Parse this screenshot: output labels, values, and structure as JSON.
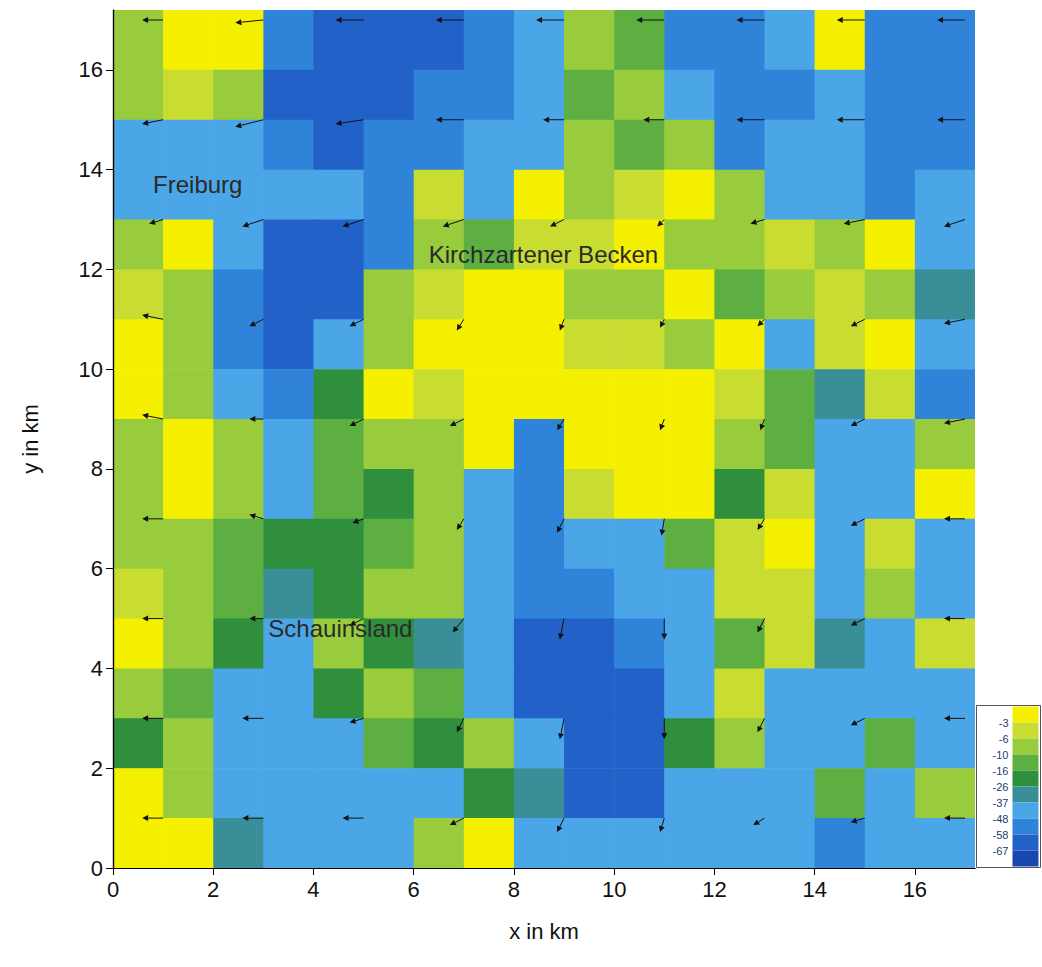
{
  "chart_data": {
    "type": "heatmap",
    "xlabel": "x in km",
    "ylabel": "y in km",
    "xlim": [
      0,
      17.2
    ],
    "ylim": [
      0,
      17.2
    ],
    "xticks": [
      0,
      2,
      4,
      6,
      8,
      10,
      12,
      14,
      16
    ],
    "yticks": [
      0,
      2,
      4,
      6,
      8,
      10,
      12,
      14,
      16
    ],
    "cells": {
      "x": [
        0.5,
        1.5,
        2.5,
        3.5,
        4.5,
        5.5,
        6.5,
        7.5,
        8.5,
        9.5,
        10.5,
        11.5,
        12.5,
        13.5,
        14.5,
        15.5,
        16.5
      ],
      "y": [
        16.5,
        15.5,
        14.5,
        13.5,
        12.5,
        11.5,
        10.5,
        9.5,
        8.5,
        7.5,
        6.5,
        5.5,
        4.5,
        3.5,
        2.5,
        1.5,
        0.5
      ],
      "values": [
        [
          -8,
          -2,
          -2,
          -52,
          -62,
          -62,
          -62,
          -52,
          -42,
          -8,
          -13,
          -52,
          -52,
          -42,
          -2,
          -52,
          -52
        ],
        [
          -8,
          -5,
          -8,
          -62,
          -62,
          -62,
          -52,
          -52,
          -42,
          -13,
          -8,
          -42,
          -52,
          -52,
          -42,
          -52,
          -52
        ],
        [
          -42,
          -42,
          -42,
          -52,
          -62,
          -52,
          -52,
          -42,
          -42,
          -8,
          -13,
          -8,
          -52,
          -42,
          -42,
          -52,
          -52
        ],
        [
          -42,
          -42,
          -42,
          -42,
          -42,
          -52,
          -5,
          -42,
          -2,
          -8,
          -5,
          -2,
          -8,
          -42,
          -42,
          -52,
          -42
        ],
        [
          -8,
          -2,
          -42,
          -62,
          -62,
          -52,
          -8,
          -13,
          -5,
          -5,
          -2,
          -8,
          -8,
          -5,
          -8,
          -2,
          -42
        ],
        [
          -5,
          -8,
          -52,
          -62,
          -62,
          -8,
          -5,
          -2,
          -2,
          -8,
          -8,
          -2,
          -13,
          -8,
          -5,
          -8,
          -30
        ],
        [
          -2,
          -8,
          -52,
          -62,
          -42,
          -8,
          -2,
          -2,
          -2,
          -5,
          -5,
          -8,
          -2,
          -42,
          -5,
          -2,
          -42
        ],
        [
          -2,
          -8,
          -42,
          -52,
          -20,
          -2,
          -5,
          -2,
          -2,
          -2,
          -2,
          -2,
          -5,
          -13,
          -30,
          -5,
          -52
        ],
        [
          -8,
          -2,
          -8,
          -42,
          -13,
          -8,
          -8,
          -2,
          -52,
          -2,
          -2,
          -2,
          -8,
          -13,
          -42,
          -42,
          -8
        ],
        [
          -8,
          -2,
          -8,
          -42,
          -13,
          -20,
          -8,
          -42,
          -52,
          -5,
          -2,
          -2,
          -20,
          -5,
          -42,
          -42,
          -2
        ],
        [
          -8,
          -8,
          -13,
          -20,
          -20,
          -13,
          -8,
          -42,
          -52,
          -42,
          -42,
          -13,
          -5,
          -2,
          -42,
          -5,
          -42
        ],
        [
          -5,
          -8,
          -13,
          -30,
          -20,
          -8,
          -8,
          -42,
          -52,
          -52,
          -42,
          -42,
          -5,
          -5,
          -42,
          -8,
          -42
        ],
        [
          -2,
          -8,
          -20,
          -42,
          -8,
          -20,
          -30,
          -42,
          -62,
          -62,
          -52,
          -42,
          -13,
          -5,
          -30,
          -42,
          -5
        ],
        [
          -8,
          -13,
          -42,
          -42,
          -20,
          -8,
          -13,
          -42,
          -62,
          -62,
          -62,
          -42,
          -5,
          -42,
          -42,
          -42,
          -42
        ],
        [
          -20,
          -8,
          -42,
          -42,
          -42,
          -13,
          -20,
          -8,
          -42,
          -62,
          -62,
          -20,
          -8,
          -42,
          -42,
          -13,
          -42
        ],
        [
          -2,
          -8,
          -42,
          -42,
          -42,
          -42,
          -42,
          -20,
          -30,
          -62,
          -62,
          -42,
          -42,
          -42,
          -13,
          -42,
          -8
        ],
        [
          -2,
          -2,
          -30,
          -42,
          -42,
          -42,
          -8,
          -2,
          -42,
          -42,
          -42,
          -42,
          -42,
          -42,
          -52,
          -42,
          -42
        ]
      ]
    },
    "vectors": {
      "x": [
        1,
        3,
        5,
        7,
        9,
        11,
        13,
        15,
        17
      ],
      "y": [
        17,
        15,
        13,
        11,
        9,
        7,
        5,
        3,
        1
      ],
      "u": [
        [
          -1.5,
          -2,
          -2,
          -2,
          -2,
          -2,
          -2,
          -2,
          -2
        ],
        [
          -1.5,
          -2,
          -2,
          -2,
          -1.5,
          -1.5,
          -2,
          -2,
          -2
        ],
        [
          -1,
          -1.5,
          -1.5,
          -1.5,
          -1,
          -0.5,
          -1,
          -1.5,
          -1.5
        ],
        [
          -1.5,
          -1,
          -1,
          -0.5,
          -0.3,
          -0.3,
          -0.5,
          -1,
          -1.5
        ],
        [
          -1.5,
          -1,
          -1,
          -1,
          -0.5,
          -0.3,
          -0.3,
          -1,
          -1.5
        ],
        [
          -1.5,
          -1,
          -0.8,
          -0.5,
          -0.5,
          -0.2,
          -0.5,
          -1,
          -1.5
        ],
        [
          -1.5,
          -1,
          -1,
          -0.8,
          -0.3,
          0,
          -0.5,
          -1,
          -1.5
        ],
        [
          -1.5,
          -1.5,
          -1,
          -0.5,
          -0.3,
          0,
          -0.5,
          -1,
          -1.5
        ],
        [
          -1.5,
          -1.5,
          -1.5,
          -1,
          -0.5,
          -0.3,
          -0.8,
          -1,
          -1.5
        ]
      ],
      "v": [
        [
          0,
          -0.2,
          0,
          0,
          0,
          0,
          0,
          0,
          0
        ],
        [
          -0.3,
          -0.5,
          -0.3,
          0,
          0,
          0,
          0,
          0,
          0
        ],
        [
          -0.3,
          -0.5,
          -0.5,
          -0.5,
          -0.5,
          -0.5,
          -0.3,
          -0.3,
          -0.5
        ],
        [
          0.3,
          -0.5,
          -0.5,
          -0.8,
          -0.8,
          -0.6,
          -0.5,
          -0.5,
          -0.3
        ],
        [
          0.3,
          0,
          -0.5,
          -0.5,
          -0.8,
          -0.8,
          -0.8,
          -0.5,
          -0.3
        ],
        [
          0,
          0.3,
          -0.3,
          -0.8,
          -1,
          -1.2,
          -0.8,
          -0.5,
          0
        ],
        [
          0,
          0,
          -0.5,
          -1,
          -1.5,
          -1.5,
          -1,
          -0.5,
          0
        ],
        [
          0,
          0,
          -0.3,
          -1,
          -1.5,
          -1.5,
          -1,
          -0.5,
          0
        ],
        [
          0,
          0,
          0,
          -0.5,
          -1,
          -1,
          -0.5,
          -0.3,
          0
        ]
      ]
    },
    "colorbar": {
      "ticks": [
        -3,
        -6,
        -10,
        -16,
        -26,
        -37,
        -48,
        -58,
        -67
      ],
      "colors": [
        "#f4f000",
        "#c8dc32",
        "#98cc3c",
        "#5caf40",
        "#2f8f3c",
        "#3a8e98",
        "#4aa6e6",
        "#2f84da",
        "#2262c8",
        "#1a46b0"
      ]
    },
    "annotations": [
      {
        "text": "Freiburg",
        "x": 0.8,
        "y": 13.7
      },
      {
        "text": "Kirchzartener Becken",
        "x": 6.3,
        "y": 12.3
      },
      {
        "text": "Schauinsland",
        "x": 3.1,
        "y": 4.8
      }
    ]
  }
}
